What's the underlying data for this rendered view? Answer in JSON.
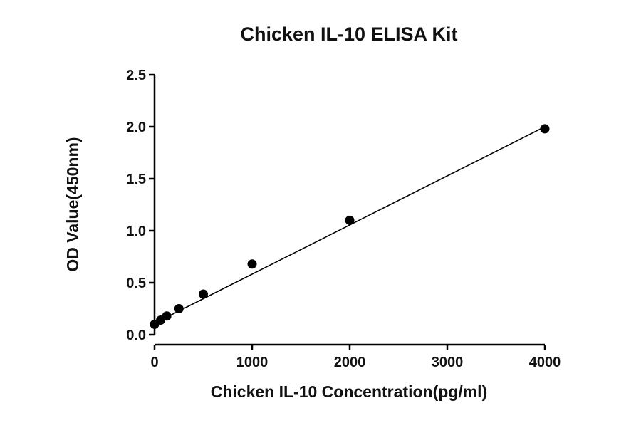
{
  "chart_data": {
    "type": "scatter",
    "title": "Chicken IL-10 ELISA Kit",
    "xlabel": "Chicken IL-10 Concentration(pg/ml)",
    "ylabel": "OD Value(450nm)",
    "xlim": [
      0,
      4000
    ],
    "ylim": [
      0,
      2.5
    ],
    "xticks": [
      0,
      1000,
      2000,
      3000,
      4000
    ],
    "xtick_labels": [
      "0",
      "1000",
      "2000",
      "3000",
      "4000"
    ],
    "yticks": [
      0,
      0.5,
      1.0,
      1.5,
      2.0,
      2.5
    ],
    "ytick_labels": [
      "0.0",
      "0.5",
      "1.0",
      "1.5",
      "2.0",
      "2.5"
    ],
    "grid": false,
    "series": [
      {
        "x": [
          0,
          62.5,
          125,
          250,
          500,
          1000,
          2000,
          4000
        ],
        "y": [
          0.1,
          0.14,
          0.18,
          0.25,
          0.39,
          0.68,
          1.1,
          1.98
        ]
      }
    ],
    "fit_line": {
      "x": [
        0,
        4000
      ],
      "y": [
        0.11,
        2.0
      ]
    },
    "colors": {
      "points": "#000000",
      "line": "#000000",
      "background": "#ffffff"
    }
  }
}
